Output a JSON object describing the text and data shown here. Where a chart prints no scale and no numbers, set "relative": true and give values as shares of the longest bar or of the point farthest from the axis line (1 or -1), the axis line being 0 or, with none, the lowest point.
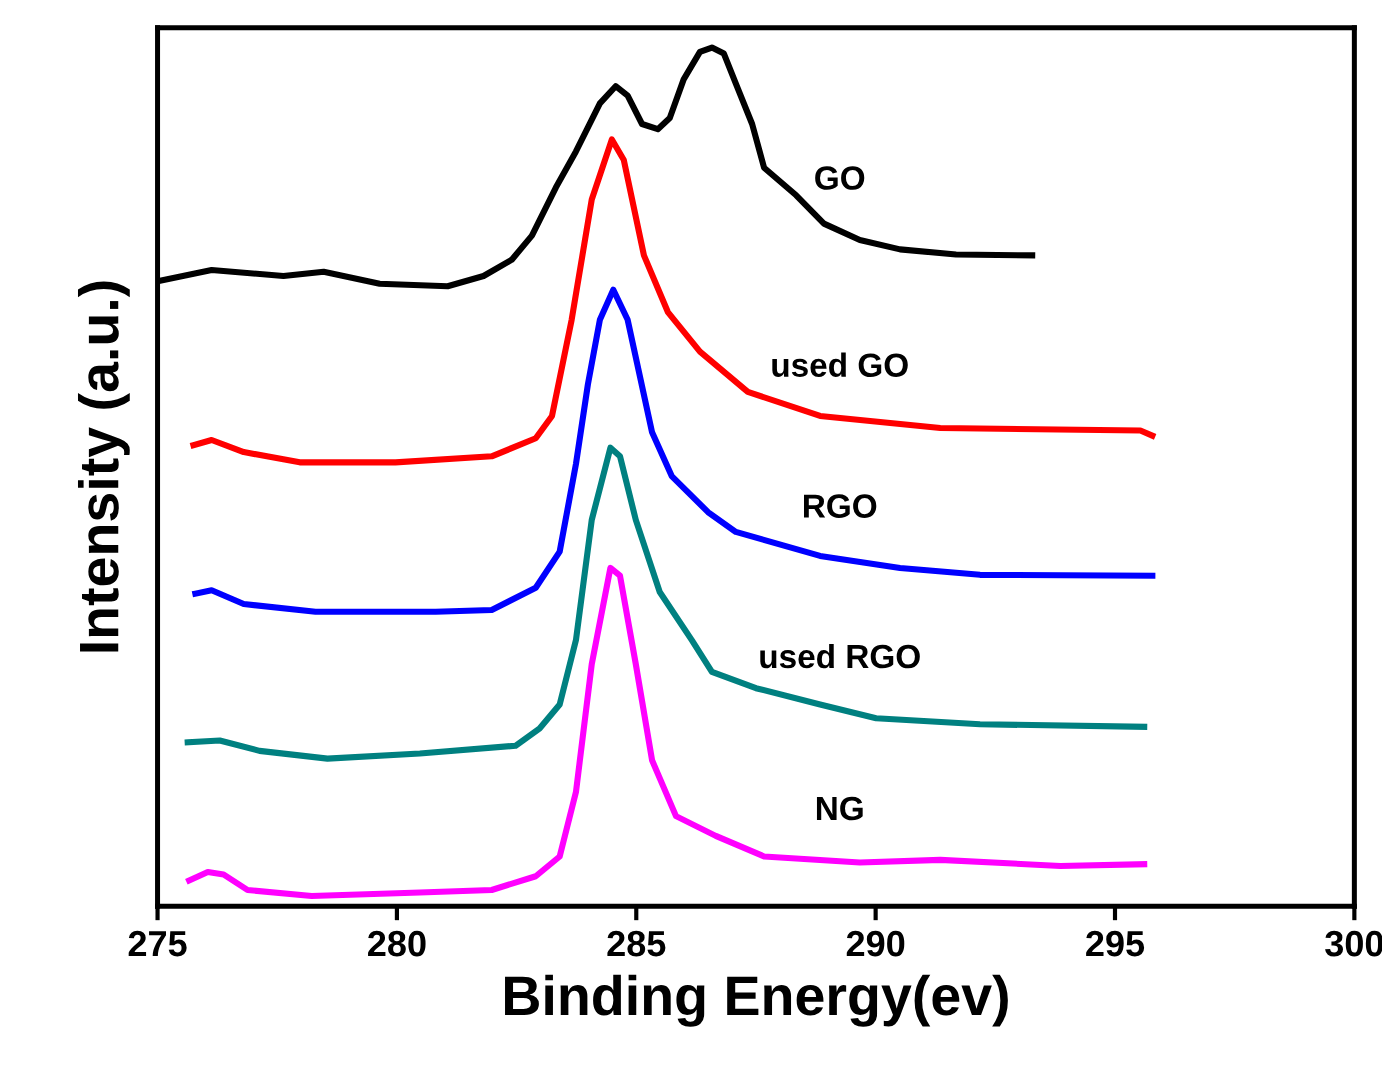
{
  "chart_data": {
    "type": "line",
    "relative": true,
    "xlabel": "Binding Energy(ev)",
    "ylabel": "Intensity (a.u.)",
    "xlim": [
      275,
      300
    ],
    "xticks": [
      275,
      280,
      285,
      290,
      295,
      300
    ],
    "grid": false,
    "legend": false,
    "marker": "none",
    "line_style": "solid",
    "series": [
      {
        "name": "GO",
        "color": "#000000",
        "x": [
          275.0,
          276.13,
          277.63,
          278.47,
          279.64,
          281.06,
          281.81,
          282.4,
          282.82,
          283.32,
          283.74,
          284.24,
          284.57,
          284.82,
          285.12,
          285.45,
          285.7,
          285.99,
          286.33,
          286.58,
          286.83,
          287.08,
          287.42,
          287.67,
          288.34,
          288.92,
          289.67,
          290.51,
          291.68,
          293.27
        ],
        "values": [
          0.728,
          0.741,
          0.734,
          0.739,
          0.725,
          0.722,
          0.734,
          0.753,
          0.781,
          0.837,
          0.879,
          0.935,
          0.955,
          0.944,
          0.911,
          0.905,
          0.918,
          0.963,
          0.995,
          1.0,
          0.993,
          0.958,
          0.911,
          0.86,
          0.828,
          0.795,
          0.776,
          0.765,
          0.759,
          0.758
        ]
      },
      {
        "name": "used GO",
        "color": "#ff0000",
        "x": [
          275.75,
          276.13,
          276.8,
          277.97,
          279.97,
          281.98,
          282.9,
          283.24,
          283.65,
          284.07,
          284.49,
          284.74,
          285.16,
          285.66,
          286.33,
          287.33,
          288.84,
          291.35,
          295.53,
          295.78
        ],
        "values": [
          0.537,
          0.543,
          0.529,
          0.517,
          0.517,
          0.524,
          0.545,
          0.571,
          0.683,
          0.823,
          0.893,
          0.869,
          0.758,
          0.692,
          0.646,
          0.599,
          0.571,
          0.557,
          0.554,
          0.548
        ]
      },
      {
        "name": "RGO",
        "color": "#0000ff",
        "x": [
          275.79,
          276.13,
          276.8,
          278.3,
          280.81,
          281.98,
          282.9,
          283.4,
          283.74,
          283.99,
          284.24,
          284.52,
          284.82,
          285.33,
          285.74,
          286.5,
          287.08,
          288.84,
          290.51,
          292.18,
          295.78
        ],
        "values": [
          0.364,
          0.368,
          0.352,
          0.343,
          0.343,
          0.345,
          0.371,
          0.413,
          0.515,
          0.608,
          0.683,
          0.718,
          0.683,
          0.552,
          0.501,
          0.459,
          0.436,
          0.408,
          0.394,
          0.386,
          0.385
        ]
      },
      {
        "name": "used RGO",
        "color": "#008080",
        "x": [
          275.63,
          276.3,
          277.13,
          278.55,
          280.48,
          282.48,
          282.98,
          283.4,
          283.74,
          284.07,
          284.46,
          284.66,
          284.99,
          285.49,
          286.16,
          286.58,
          287.5,
          288.84,
          290.01,
          292.18,
          295.61
        ],
        "values": [
          0.191,
          0.193,
          0.181,
          0.172,
          0.178,
          0.187,
          0.207,
          0.235,
          0.31,
          0.45,
          0.534,
          0.524,
          0.45,
          0.366,
          0.31,
          0.273,
          0.254,
          0.235,
          0.219,
          0.212,
          0.209
        ]
      },
      {
        "name": "NG",
        "color": "#ff00ff",
        "x": [
          275.66,
          276.05,
          276.38,
          276.88,
          278.22,
          280.48,
          281.98,
          282.9,
          283.4,
          283.74,
          284.07,
          284.46,
          284.66,
          284.99,
          285.33,
          285.83,
          286.66,
          287.67,
          289.67,
          291.35,
          293.86,
          295.61
        ],
        "values": [
          0.03,
          0.04,
          0.037,
          0.019,
          0.012,
          0.016,
          0.019,
          0.035,
          0.058,
          0.133,
          0.282,
          0.394,
          0.385,
          0.282,
          0.17,
          0.105,
          0.082,
          0.058,
          0.051,
          0.054,
          0.047,
          0.049
        ]
      }
    ]
  }
}
